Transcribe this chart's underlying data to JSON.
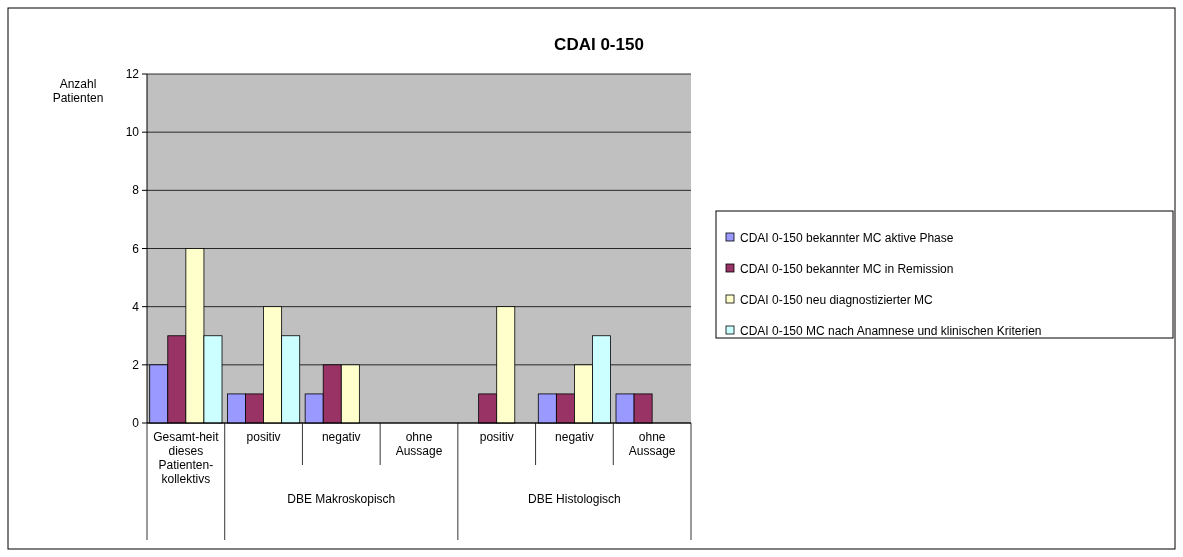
{
  "chart_data": {
    "type": "bar",
    "title": "CDAI 0-150",
    "ylabel": "Anzahl Patienten",
    "categories": [
      "Gesamt-heit dieses Patienten-kollektivs",
      "positiv",
      "negativ",
      "ohne Aussage",
      "positiv",
      "negativ",
      "ohne Aussage"
    ],
    "annotations": [
      "DBE Makroskopisch",
      "DBE Histologisch"
    ],
    "series": [
      {
        "name": "CDAI 0-150 bekannter MC aktive Phase",
        "color": "#9999ff",
        "values": [
          2,
          1,
          1,
          0,
          0,
          1,
          1
        ]
      },
      {
        "name": "CDAI 0-150 bekannter MC in Remission",
        "color": "#993366",
        "values": [
          3,
          1,
          2,
          0,
          1,
          1,
          1
        ]
      },
      {
        "name": "CDAI 0-150 neu diagnostizierter MC",
        "color": "#ffffcc",
        "values": [
          6,
          4,
          2,
          0,
          4,
          2,
          0
        ]
      },
      {
        "name": "CDAI 0-150 MC nach Anamnese und klinischen Kriterien",
        "color": "#ccffff",
        "values": [
          3,
          3,
          0,
          0,
          0,
          3,
          0
        ]
      }
    ],
    "ylim": [
      0,
      12
    ],
    "yticks": [
      0,
      2,
      4,
      6,
      8,
      10,
      12
    ],
    "grid": "y",
    "legend": "right"
  }
}
